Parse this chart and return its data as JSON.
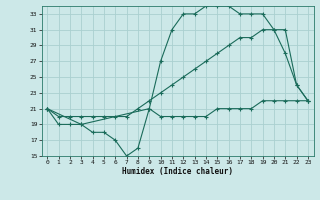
{
  "xlabel": "Humidex (Indice chaleur)",
  "ylabel": "",
  "bg_color": "#cce8e8",
  "grid_color": "#aad0d0",
  "line_color": "#1a6b5a",
  "xlim": [
    -0.5,
    23.5
  ],
  "ylim": [
    15,
    34
  ],
  "xticks": [
    0,
    1,
    2,
    3,
    4,
    5,
    6,
    7,
    8,
    9,
    10,
    11,
    12,
    13,
    14,
    15,
    16,
    17,
    18,
    19,
    20,
    21,
    22,
    23
  ],
  "yticks": [
    15,
    17,
    19,
    21,
    23,
    25,
    27,
    29,
    31,
    33
  ],
  "line1_x": [
    0,
    1,
    2,
    3,
    4,
    5,
    6,
    7,
    8,
    9,
    10,
    11,
    12,
    13,
    14,
    15,
    16,
    17,
    18,
    19,
    20,
    21,
    22,
    23
  ],
  "line1_y": [
    21,
    19,
    19,
    19,
    18,
    18,
    17,
    15,
    16,
    21,
    20,
    20,
    20,
    20,
    20,
    21,
    21,
    21,
    21,
    22,
    22,
    22,
    22,
    22
  ],
  "line2_x": [
    0,
    1,
    2,
    3,
    4,
    5,
    6,
    7,
    8,
    9,
    10,
    11,
    12,
    13,
    14,
    15,
    16,
    17,
    18,
    19,
    20,
    21,
    22,
    23
  ],
  "line2_y": [
    21,
    20,
    20,
    20,
    20,
    20,
    20,
    20,
    21,
    22,
    23,
    24,
    25,
    26,
    27,
    28,
    29,
    30,
    30,
    31,
    31,
    31,
    24,
    22
  ],
  "line3_x": [
    0,
    3,
    9,
    10,
    11,
    12,
    13,
    14,
    15,
    16,
    17,
    18,
    19,
    20,
    21,
    22,
    23
  ],
  "line3_y": [
    21,
    19,
    21,
    27,
    31,
    33,
    33,
    34,
    34,
    34,
    33,
    33,
    33,
    31,
    28,
    24,
    22
  ]
}
